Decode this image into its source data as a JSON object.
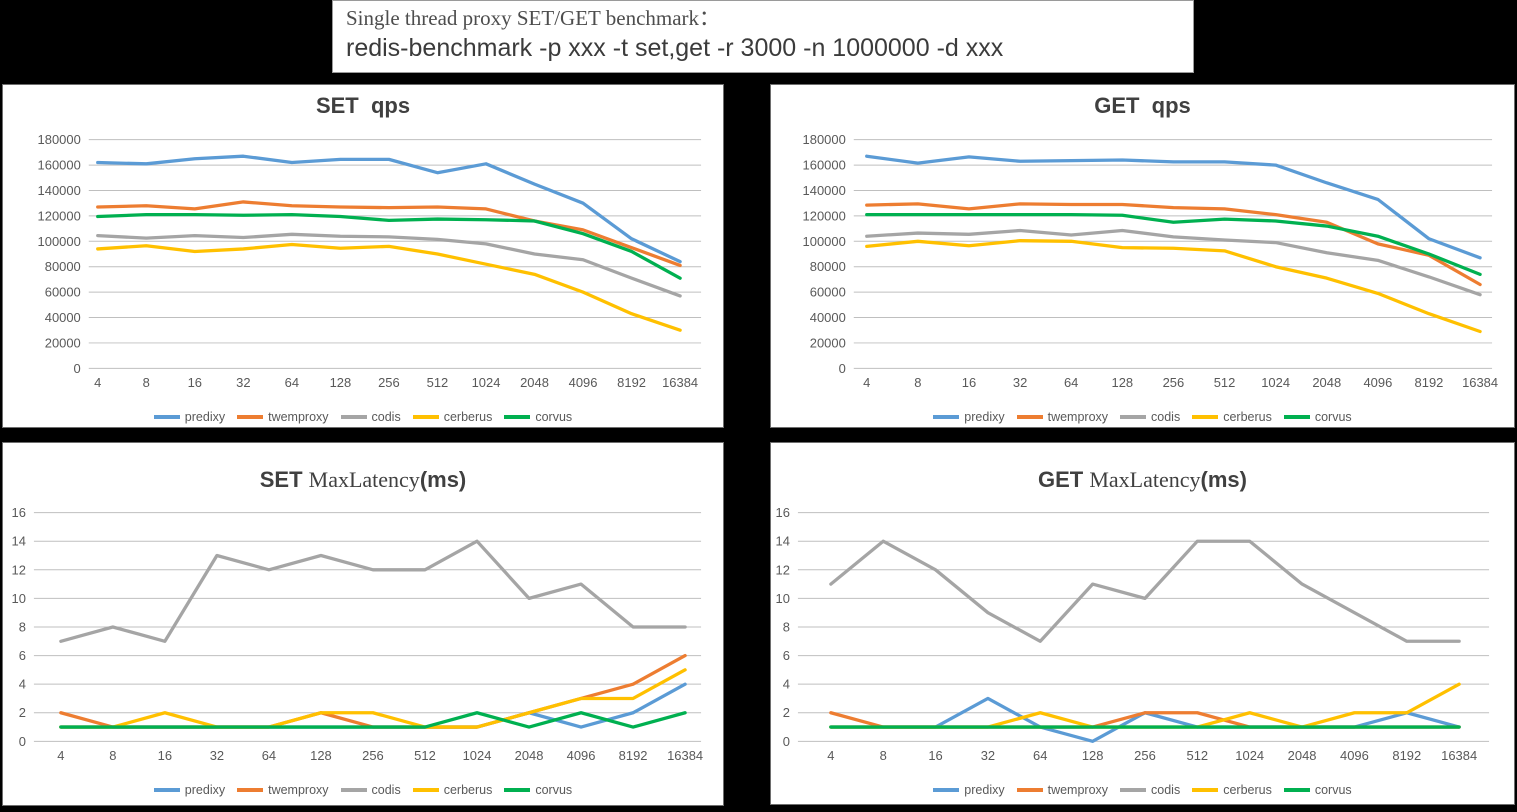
{
  "header": {
    "line1": "Single thread proxy SET/GET benchmark：",
    "line2": "redis-benchmark -p xxx -t set,get -r 3000 -n 1000000 -d xxx"
  },
  "palette": {
    "predixy": "#5B9BD5",
    "twemproxy": "#ED7D31",
    "codis": "#A5A5A5",
    "cerberus": "#FFC000",
    "corvus": "#00B050",
    "grid": "#bfbfbf",
    "axis_text": "#595959",
    "title_text": "#404040",
    "page_background": "#000000",
    "panel_background": "#ffffff"
  },
  "chart_data": [
    {
      "type": "line",
      "title_segments": [
        {
          "text": "SET  qps",
          "serif": false
        }
      ],
      "categories": [
        "4",
        "8",
        "16",
        "32",
        "64",
        "128",
        "256",
        "512",
        "1024",
        "2048",
        "4096",
        "8192",
        "16384"
      ],
      "xlabel": "",
      "ylabel": "",
      "ylim": [
        0,
        180000
      ],
      "ytick_step": 20000,
      "grid": true,
      "legend_position": "bottom",
      "series": [
        {
          "name": "predixy",
          "color": "#5B9BD5",
          "values": [
            162000,
            161000,
            165000,
            167000,
            162000,
            164500,
            164500,
            154000,
            161000,
            145000,
            130000,
            102000,
            84000
          ]
        },
        {
          "name": "twemproxy",
          "color": "#ED7D31",
          "values": [
            127000,
            128000,
            125500,
            131000,
            128000,
            127000,
            126500,
            127000,
            125500,
            116000,
            109000,
            95000,
            81000
          ]
        },
        {
          "name": "codis",
          "color": "#A5A5A5",
          "values": [
            104500,
            102500,
            104500,
            103000,
            105500,
            104000,
            103500,
            101500,
            98000,
            90000,
            85500,
            71000,
            57000
          ]
        },
        {
          "name": "cerberus",
          "color": "#FFC000",
          "values": [
            94000,
            96500,
            92000,
            94000,
            97500,
            94500,
            96000,
            90000,
            82000,
            74000,
            60000,
            43000,
            30000
          ]
        },
        {
          "name": "corvus",
          "color": "#00B050",
          "values": [
            119500,
            121000,
            121000,
            120500,
            121000,
            119500,
            116500,
            117500,
            117000,
            116000,
            106000,
            92000,
            71000
          ]
        }
      ]
    },
    {
      "type": "line",
      "title_segments": [
        {
          "text": "GET  qps",
          "serif": false
        }
      ],
      "categories": [
        "4",
        "8",
        "16",
        "32",
        "64",
        "128",
        "256",
        "512",
        "1024",
        "2048",
        "4096",
        "8192",
        "16384"
      ],
      "xlabel": "",
      "ylabel": "",
      "ylim": [
        0,
        180000
      ],
      "ytick_step": 20000,
      "grid": true,
      "legend_position": "bottom",
      "series": [
        {
          "name": "predixy",
          "color": "#5B9BD5",
          "values": [
            167000,
            161500,
            166500,
            163000,
            163500,
            164000,
            162500,
            162500,
            160000,
            146000,
            133000,
            102000,
            87000
          ]
        },
        {
          "name": "twemproxy",
          "color": "#ED7D31",
          "values": [
            128500,
            129500,
            125500,
            129500,
            129000,
            129000,
            126500,
            125500,
            121000,
            115000,
            98000,
            89000,
            66000
          ]
        },
        {
          "name": "codis",
          "color": "#A5A5A5",
          "values": [
            104000,
            106500,
            105500,
            108500,
            105000,
            108500,
            103500,
            101000,
            99000,
            91000,
            85000,
            72000,
            58000
          ]
        },
        {
          "name": "cerberus",
          "color": "#FFC000",
          "values": [
            96000,
            100000,
            96500,
            100500,
            100000,
            95000,
            94500,
            92500,
            80000,
            71000,
            59000,
            43000,
            29000
          ]
        },
        {
          "name": "corvus",
          "color": "#00B050",
          "values": [
            121000,
            121000,
            121000,
            121000,
            121000,
            120500,
            115000,
            117500,
            116000,
            112000,
            104000,
            90000,
            74000
          ]
        }
      ]
    },
    {
      "type": "line",
      "title_segments": [
        {
          "text": "SET ",
          "serif": false
        },
        {
          "text": "MaxLatency",
          "serif": true
        },
        {
          "text": "(ms)",
          "serif": false
        }
      ],
      "categories": [
        "4",
        "8",
        "16",
        "32",
        "64",
        "128",
        "256",
        "512",
        "1024",
        "2048",
        "4096",
        "8192",
        "16384"
      ],
      "xlabel": "",
      "ylabel": "",
      "ylim": [
        0,
        16
      ],
      "ytick_step": 2,
      "grid": true,
      "legend_position": "bottom",
      "series": [
        {
          "name": "predixy",
          "color": "#5B9BD5",
          "values": [
            1,
            1,
            1,
            1,
            1,
            1,
            1,
            1,
            1,
            2,
            1,
            2,
            4
          ]
        },
        {
          "name": "twemproxy",
          "color": "#ED7D31",
          "values": [
            2,
            1,
            1,
            1,
            1,
            2,
            1,
            1,
            1,
            2,
            3,
            4,
            6
          ]
        },
        {
          "name": "codis",
          "color": "#A5A5A5",
          "values": [
            7,
            8,
            7,
            13,
            12,
            13,
            12,
            12,
            14,
            10,
            11,
            8,
            8
          ]
        },
        {
          "name": "cerberus",
          "color": "#FFC000",
          "values": [
            1,
            1,
            2,
            1,
            1,
            2,
            2,
            1,
            1,
            2,
            3,
            3,
            5
          ]
        },
        {
          "name": "corvus",
          "color": "#00B050",
          "values": [
            1,
            1,
            1,
            1,
            1,
            1,
            1,
            1,
            2,
            1,
            2,
            1,
            2
          ]
        }
      ]
    },
    {
      "type": "line",
      "title_segments": [
        {
          "text": "GET ",
          "serif": false
        },
        {
          "text": "MaxLatency",
          "serif": true
        },
        {
          "text": "(ms)",
          "serif": false
        }
      ],
      "categories": [
        "4",
        "8",
        "16",
        "32",
        "64",
        "128",
        "256",
        "512",
        "1024",
        "2048",
        "4096",
        "8192",
        "16384"
      ],
      "xlabel": "",
      "ylabel": "",
      "ylim": [
        0,
        16
      ],
      "ytick_step": 2,
      "grid": true,
      "legend_position": "bottom",
      "series": [
        {
          "name": "predixy",
          "color": "#5B9BD5",
          "values": [
            1,
            1,
            1,
            3,
            1,
            0,
            2,
            1,
            1,
            1,
            1,
            2,
            1
          ]
        },
        {
          "name": "twemproxy",
          "color": "#ED7D31",
          "values": [
            2,
            1,
            1,
            1,
            1,
            1,
            2,
            2,
            1,
            1,
            1,
            1,
            1
          ]
        },
        {
          "name": "codis",
          "color": "#A5A5A5",
          "values": [
            11,
            14,
            12,
            9,
            7,
            11,
            10,
            14,
            14,
            11,
            9,
            7,
            7
          ]
        },
        {
          "name": "cerberus",
          "color": "#FFC000",
          "values": [
            1,
            1,
            1,
            1,
            2,
            1,
            1,
            1,
            2,
            1,
            2,
            2,
            4
          ]
        },
        {
          "name": "corvus",
          "color": "#00B050",
          "values": [
            1,
            1,
            1,
            1,
            1,
            1,
            1,
            1,
            1,
            1,
            1,
            1,
            1
          ]
        }
      ]
    }
  ]
}
